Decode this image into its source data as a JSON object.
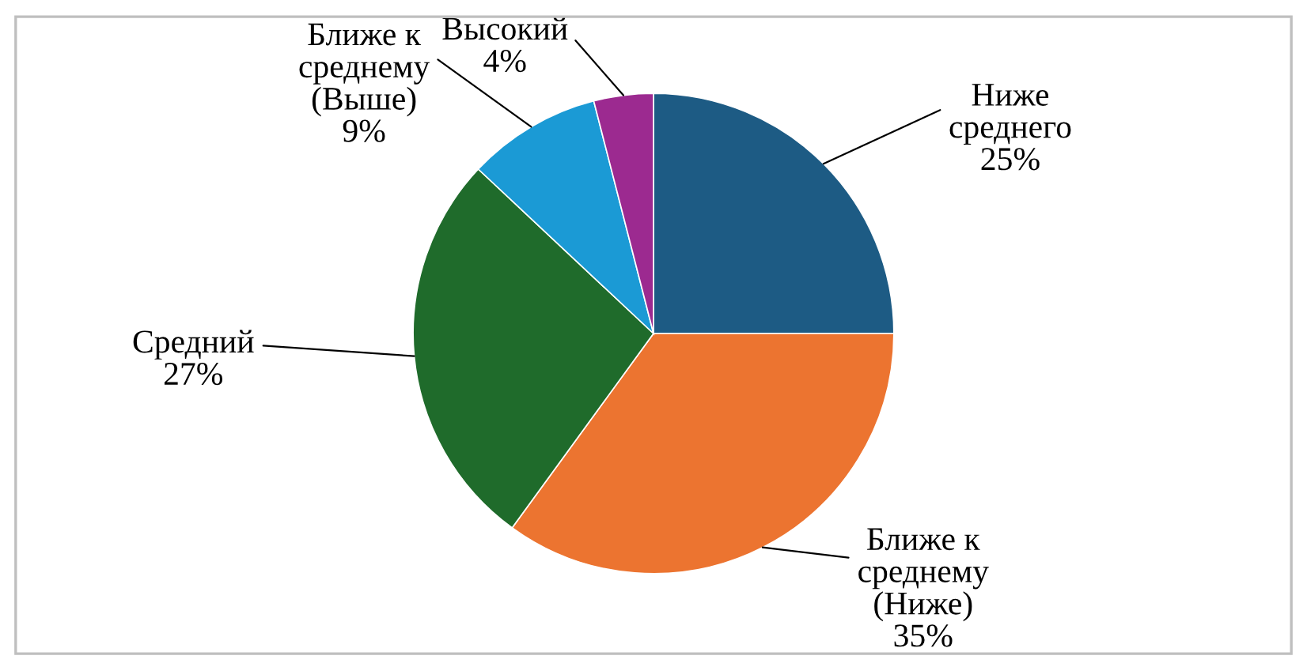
{
  "chart_data": {
    "type": "pie",
    "categories": [
      "Ниже\nсреднего",
      "Ближе к\nсреднему\n(Ниже)",
      "Средний",
      "Ближе к\nсреднему\n(Выше)",
      "Высокий"
    ],
    "values": [
      25,
      35,
      27,
      9,
      4
    ],
    "value_labels": [
      "25%",
      "35%",
      "27%",
      "9%",
      "4%"
    ],
    "colors": [
      "#1d5b84",
      "#ec7430",
      "#1f6b2b",
      "#1b9ad5",
      "#9c2a90"
    ]
  }
}
